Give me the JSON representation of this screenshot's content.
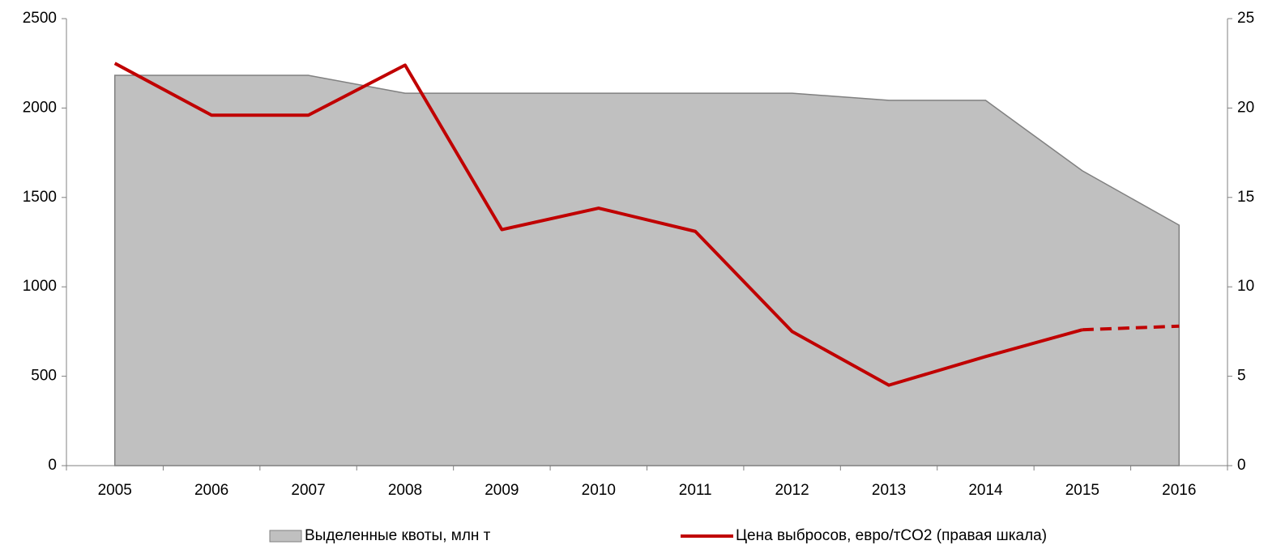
{
  "chart_data": {
    "type": "area_line",
    "categories": [
      "2005",
      "2006",
      "2007",
      "2008",
      "2009",
      "2010",
      "2011",
      "2012",
      "2013",
      "2014",
      "2015",
      "2016"
    ],
    "series": [
      {
        "name": "Выделенные квоты, млн т",
        "type": "area",
        "color": "#c0c0c0",
        "values": [
          2183,
          2183,
          2183,
          2083,
          2083,
          2083,
          2083,
          2083,
          2043,
          2043,
          1649,
          1345
        ]
      },
      {
        "name": "Цена выбросов, евро/тCO2 (правая шкала)",
        "type": "line",
        "axis": "y2",
        "color": "#c00000",
        "dashed_from": "2015",
        "values": [
          22.5,
          19.6,
          19.6,
          22.4,
          13.2,
          14.4,
          13.1,
          7.5,
          4.5,
          6.1,
          7.6,
          7.8
        ]
      }
    ],
    "ylim": [
      0,
      2500
    ],
    "yticks": [
      0,
      500,
      1000,
      1500,
      2000,
      2500
    ],
    "y2lim": [
      0,
      25
    ],
    "y2ticks": [
      0,
      5,
      10,
      15,
      20,
      25
    ]
  }
}
